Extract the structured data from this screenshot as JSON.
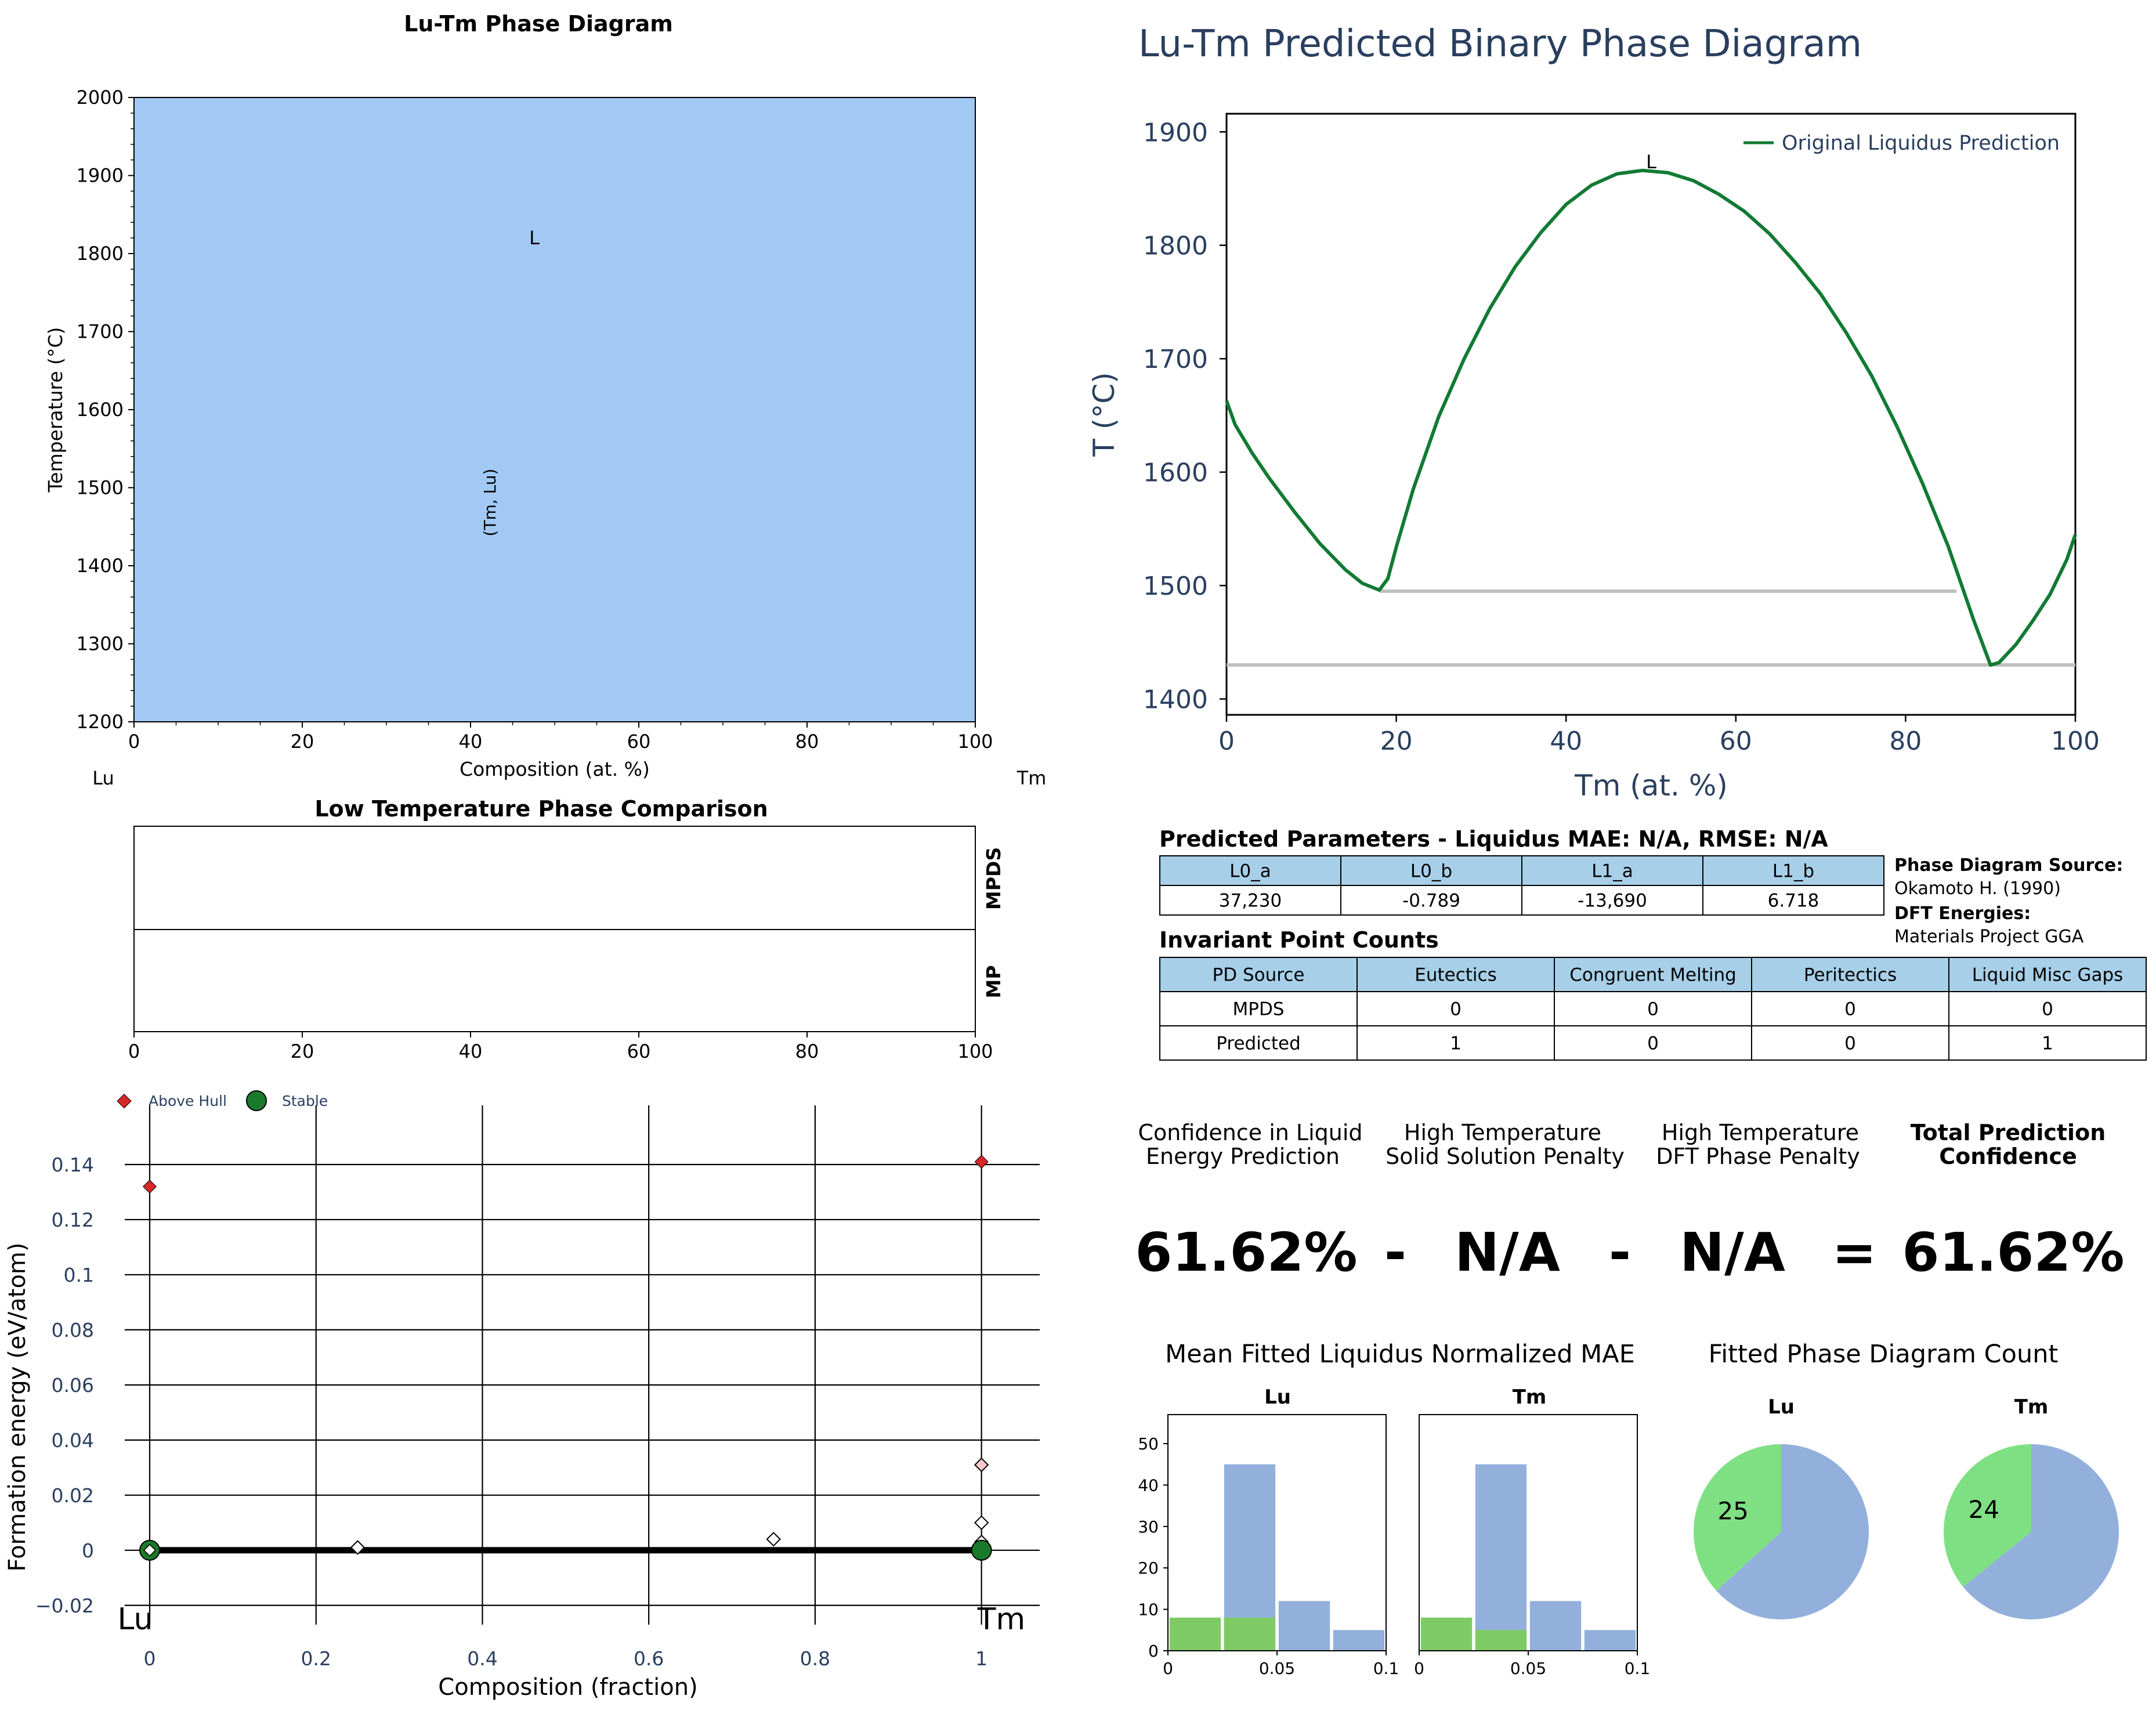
{
  "phase_diagram": {
    "title": "Lu-Tm Phase Diagram",
    "xlabel": "Composition (at. %)",
    "ylabel": "Temperature (°C)",
    "left_element": "Lu",
    "right_element": "Tm",
    "region_labels": [
      "L",
      "(Tm, Lu)"
    ]
  },
  "low_temp": {
    "title": "Low Temperature Phase Comparison",
    "row_labels": [
      "MPDS",
      "MP"
    ]
  },
  "hull": {
    "xlabel": "Composition (fraction)",
    "ylabel": "Formation energy (eV/atom)",
    "left_element": "Lu",
    "right_element": "Tm",
    "legend": [
      "Above Hull",
      "Stable"
    ]
  },
  "predicted": {
    "title": "Lu-Tm Predicted Binary Phase Diagram",
    "xlabel": "Tm (at. %)",
    "ylabel": "T (°C)",
    "legend": "Original Liquidus Prediction",
    "label_L": "L"
  },
  "params_table": {
    "title": "Predicted Parameters - Liquidus MAE: N/A, RMSE: N/A",
    "headers": [
      "L0_a",
      "L0_b",
      "L1_a",
      "L1_b"
    ],
    "values": [
      "37,230",
      "-0.789",
      "-13,690",
      "6.718"
    ]
  },
  "source_info": {
    "pd_source_label": "Phase Diagram Source:",
    "pd_source_value": "Okamoto H. (1990)",
    "dft_label": "DFT Energies:",
    "dft_value": "Materials Project GGA"
  },
  "invariant_table": {
    "title": "Invariant Point Counts",
    "headers": [
      "PD Source",
      "Eutectics",
      "Congruent Melting",
      "Peritectics",
      "Liquid Misc Gaps"
    ],
    "rows": [
      [
        "MPDS",
        "0",
        "0",
        "0",
        "0"
      ],
      [
        "Predicted",
        "1",
        "0",
        "0",
        "1"
      ]
    ]
  },
  "confidence": {
    "headers": [
      [
        "Confidence in Liquid",
        "Energy Prediction"
      ],
      [
        "High Temperature",
        "Solid Solution Penalty"
      ],
      [
        "High Temperature",
        "DFT Phase Penalty"
      ],
      [
        "Total Prediction",
        "Confidence"
      ]
    ],
    "values": [
      "61.62%",
      "N/A",
      "N/A",
      "61.62%"
    ],
    "ops": [
      "-",
      "-",
      "="
    ]
  },
  "mae_section": {
    "title": "Mean Fitted Liquidus Normalized MAE",
    "panels": [
      "Lu",
      "Tm"
    ]
  },
  "count_section": {
    "title": "Fitted Phase Diagram Count",
    "panels": [
      "Lu",
      "Tm"
    ]
  },
  "colors": {
    "phase_fill": "#a1c9f4",
    "liquidus": "#127a33",
    "gray_line": "#c0c0c0",
    "header_fill": "#a7cfe8",
    "bar_blue": "#92b0db",
    "bar_green": "#7ecb66",
    "pie_blue": "#92b0db",
    "pie_green": "#7fe083",
    "hull_red": "#d62728",
    "hull_green": "#1a7a2c",
    "dark_text": "#2a3f5f"
  },
  "chart_data": [
    {
      "id": "phase_diagram",
      "type": "area",
      "title": "Lu-Tm Phase Diagram",
      "xlabel": "Composition (at. %)",
      "ylabel": "Temperature (°C)",
      "xlim": [
        0,
        100
      ],
      "ylim": [
        1200,
        2000
      ],
      "xticks": [
        0,
        20,
        40,
        60,
        80,
        100
      ],
      "yticks": [
        1200,
        1300,
        1400,
        1500,
        1600,
        1700,
        1800,
        1900,
        2000
      ],
      "regions": [
        {
          "label": "L",
          "x": 47,
          "y": 1820
        },
        {
          "label": "(Tm, Lu)",
          "x": 42,
          "y": 1500,
          "rotated": true
        }
      ]
    },
    {
      "id": "low_temp_comparison",
      "type": "table",
      "title": "Low Temperature Phase Comparison",
      "xlim": [
        0,
        100
      ],
      "xticks": [
        0,
        20,
        40,
        60,
        80,
        100
      ],
      "rows": [
        "MPDS",
        "MP"
      ]
    },
    {
      "id": "convex_hull",
      "type": "scatter",
      "xlabel": "Composition (fraction)",
      "ylabel": "Formation energy (eV/atom)",
      "xlim": [
        -0.03,
        1.07
      ],
      "ylim": [
        -0.027,
        0.152
      ],
      "xticks": [
        0,
        0.2,
        0.4,
        0.6,
        0.8,
        1
      ],
      "xtick_labels": [
        "0",
        "0.2",
        "0.4",
        "0.6",
        "0.8",
        "1"
      ],
      "yticks": [
        -0.02,
        0,
        0.02,
        0.04,
        0.06,
        0.08,
        0.1,
        0.12,
        0.14
      ],
      "ytick_labels": [
        "−0.02",
        "0",
        "0.02",
        "0.04",
        "0.06",
        "0.08",
        "0.1",
        "0.12",
        "0.14"
      ],
      "grid": true,
      "hull_line": [
        [
          0,
          0
        ],
        [
          1,
          0
        ]
      ],
      "series": [
        {
          "name": "Above Hull",
          "x": [
            0,
            1
          ],
          "y": [
            0.132,
            0.141
          ]
        },
        {
          "name": "Stable",
          "x": [
            0,
            1
          ],
          "y": [
            0,
            0
          ]
        }
      ],
      "unlabeled_points": {
        "x": [
          0.25,
          0.75,
          1,
          1,
          1,
          0
        ],
        "y": [
          0.001,
          0.004,
          0.031,
          0.01,
          0.003,
          0
        ]
      }
    },
    {
      "id": "predicted_diagram",
      "type": "line",
      "title": "Lu-Tm Predicted Binary Phase Diagram",
      "xlabel": "Tm (at. %)",
      "ylabel": "T (°C)",
      "xlim": [
        0,
        100
      ],
      "ylim": [
        1386,
        1916
      ],
      "xticks": [
        0,
        20,
        40,
        60,
        80,
        100
      ],
      "yticks": [
        1400,
        1500,
        1600,
        1700,
        1800,
        1900
      ],
      "series": [
        {
          "name": "Original Liquidus Prediction",
          "x": [
            0,
            1,
            3,
            5,
            8,
            11,
            14,
            16,
            18,
            19,
            20,
            22,
            25,
            28,
            31,
            34,
            37,
            40,
            43,
            46,
            49,
            52,
            55,
            58,
            61,
            64,
            67,
            70,
            73,
            76,
            79,
            82,
            85,
            88,
            90,
            91,
            93,
            95,
            97,
            99,
            100
          ],
          "y": [
            1663,
            1642,
            1617,
            1595,
            1565,
            1537,
            1514,
            1502,
            1496,
            1506,
            1534,
            1585,
            1649,
            1700,
            1744,
            1781,
            1811,
            1836,
            1853,
            1863,
            1866,
            1864,
            1857,
            1845,
            1830,
            1810,
            1785,
            1757,
            1723,
            1685,
            1640,
            1590,
            1535,
            1470,
            1430,
            1432,
            1448,
            1469,
            1492,
            1523,
            1545
          ]
        }
      ],
      "horizontal_lines": [
        {
          "y": 1495,
          "xmin": 18,
          "xmax": 86
        },
        {
          "y": 1430,
          "xmin": 0,
          "xmax": 100
        }
      ],
      "legend_position": "top-right"
    },
    {
      "id": "mae_lu",
      "type": "bar",
      "title": "Lu",
      "x": [
        0.0125,
        0.0375,
        0.0625,
        0.0875
      ],
      "series": [
        {
          "values": [
            0,
            45,
            12,
            5
          ]
        },
        {
          "values": [
            8,
            8,
            0,
            0
          ]
        }
      ],
      "xlim": [
        0,
        0.1
      ],
      "ylim": [
        0,
        57
      ],
      "xticks": [
        0,
        0.05,
        0.1
      ],
      "yticks": [
        0,
        10,
        20,
        30,
        40,
        50
      ]
    },
    {
      "id": "mae_tm",
      "type": "bar",
      "title": "Tm",
      "x": [
        0.0125,
        0.0375,
        0.0625,
        0.0875
      ],
      "series": [
        {
          "values": [
            0,
            45,
            12,
            5
          ]
        },
        {
          "values": [
            8,
            5,
            0,
            0
          ]
        }
      ],
      "xlim": [
        0,
        0.1
      ],
      "ylim": [
        0,
        57
      ],
      "xticks": [
        0,
        0.05,
        0.1
      ]
    },
    {
      "id": "count_lu",
      "type": "pie",
      "title": "Lu",
      "values": [
        25,
        43
      ],
      "labels": [
        "25",
        ""
      ]
    },
    {
      "id": "count_tm",
      "type": "pie",
      "title": "Tm",
      "values": [
        24,
        43
      ],
      "labels": [
        "24",
        ""
      ]
    }
  ]
}
